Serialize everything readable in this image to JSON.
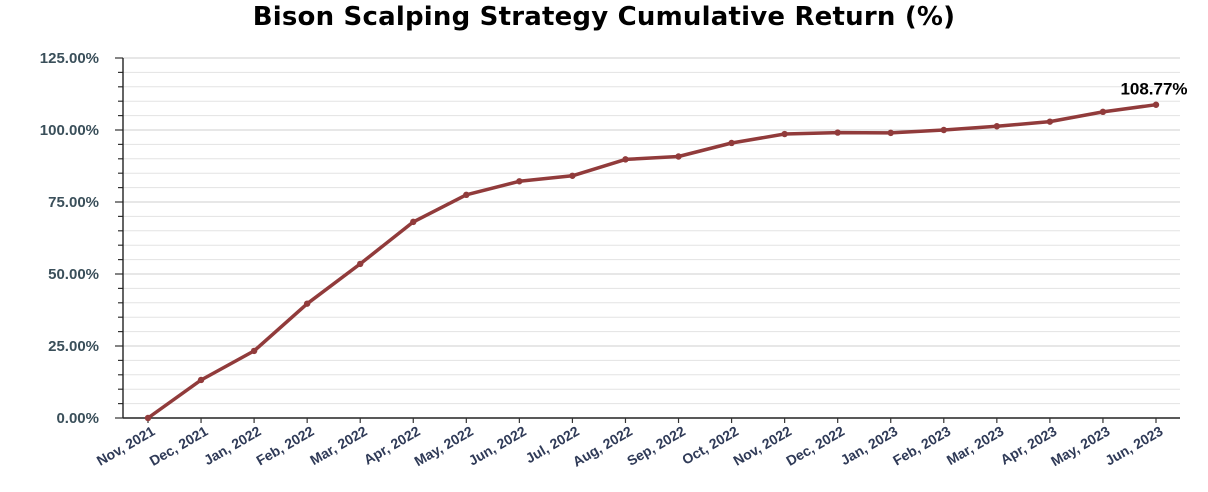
{
  "chart_data": {
    "type": "line",
    "title": "Bison Scalping Strategy Cumulative Return (%)",
    "xlabel": "",
    "ylabel": "",
    "ylim": [
      0,
      125
    ],
    "y_ticks": [
      "0.00%",
      "25.00%",
      "50.00%",
      "75.00%",
      "100.00%",
      "125.00%"
    ],
    "categories": [
      "Nov, 2021",
      "Dec, 2021",
      "Jan, 2022",
      "Feb, 2022",
      "Mar, 2022",
      "Apr, 2022",
      "May, 2022",
      "Jun, 2022",
      "Jul, 2022",
      "Aug, 2022",
      "Sep, 2022",
      "Oct, 2022",
      "Nov, 2022",
      "Dec, 2022",
      "Jan, 2023",
      "Feb, 2023",
      "Mar, 2023",
      "Apr, 2023",
      "May, 2023",
      "Jun, 2023"
    ],
    "series": [
      {
        "values": [
          0,
          13.2,
          23.3,
          39.7,
          53.5,
          68.1,
          77.5,
          82.2,
          84.1,
          89.8,
          90.8,
          95.5,
          98.6,
          99.1,
          99.0,
          100.0,
          101.3,
          102.9,
          106.3,
          108.77
        ],
        "color": "#913b3b"
      }
    ],
    "data_labels": [
      {
        "index": 19,
        "text": "108.77%"
      }
    ],
    "grid": true,
    "legend": "none"
  }
}
